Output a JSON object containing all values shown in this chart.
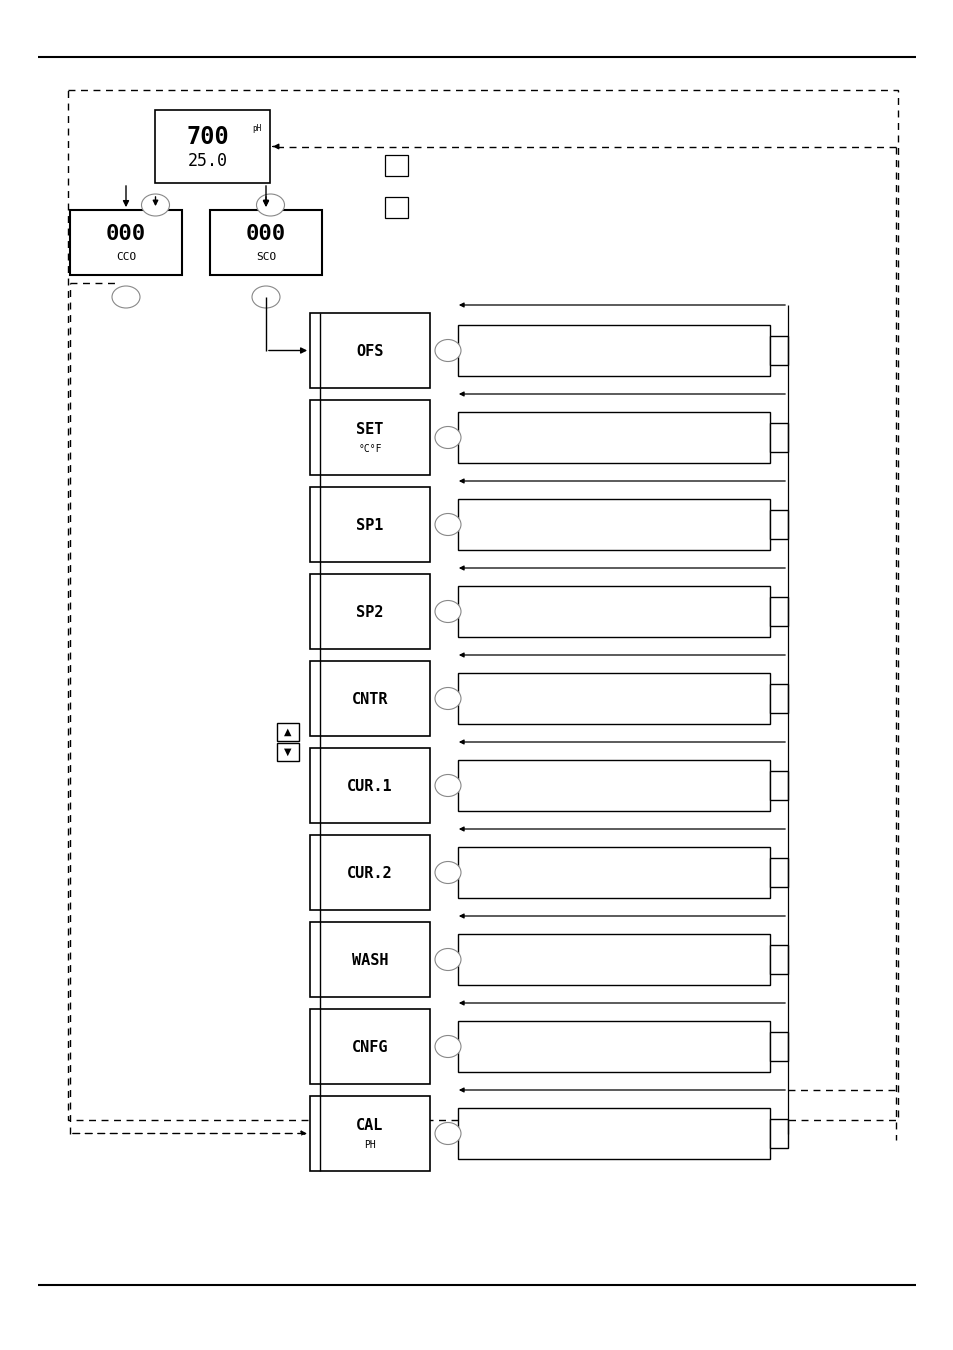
{
  "bg_color": "#ffffff",
  "lc": "#000000",
  "menu_items": [
    {
      "label": "OFS",
      "sub": ""
    },
    {
      "label": "SET",
      "sub": "°C°F"
    },
    {
      "label": "SP1",
      "sub": ""
    },
    {
      "label": "SP2",
      "sub": ""
    },
    {
      "label": "CNTR",
      "sub": ""
    },
    {
      "label": "CUR.1",
      "sub": ""
    },
    {
      "label": "CUR.2",
      "sub": ""
    },
    {
      "label": "WASH",
      "sub": ""
    },
    {
      "label": "CNFG",
      "sub": ""
    },
    {
      "label": "CAL",
      "sub": "PH"
    }
  ],
  "top_label_big": "700",
  "top_label_small": "25.0",
  "top_label_ph": "pH",
  "ccd_label_big": "000",
  "ccd_label_small": "CCO",
  "scd_label_big": "000",
  "scd_label_small": "SCO"
}
